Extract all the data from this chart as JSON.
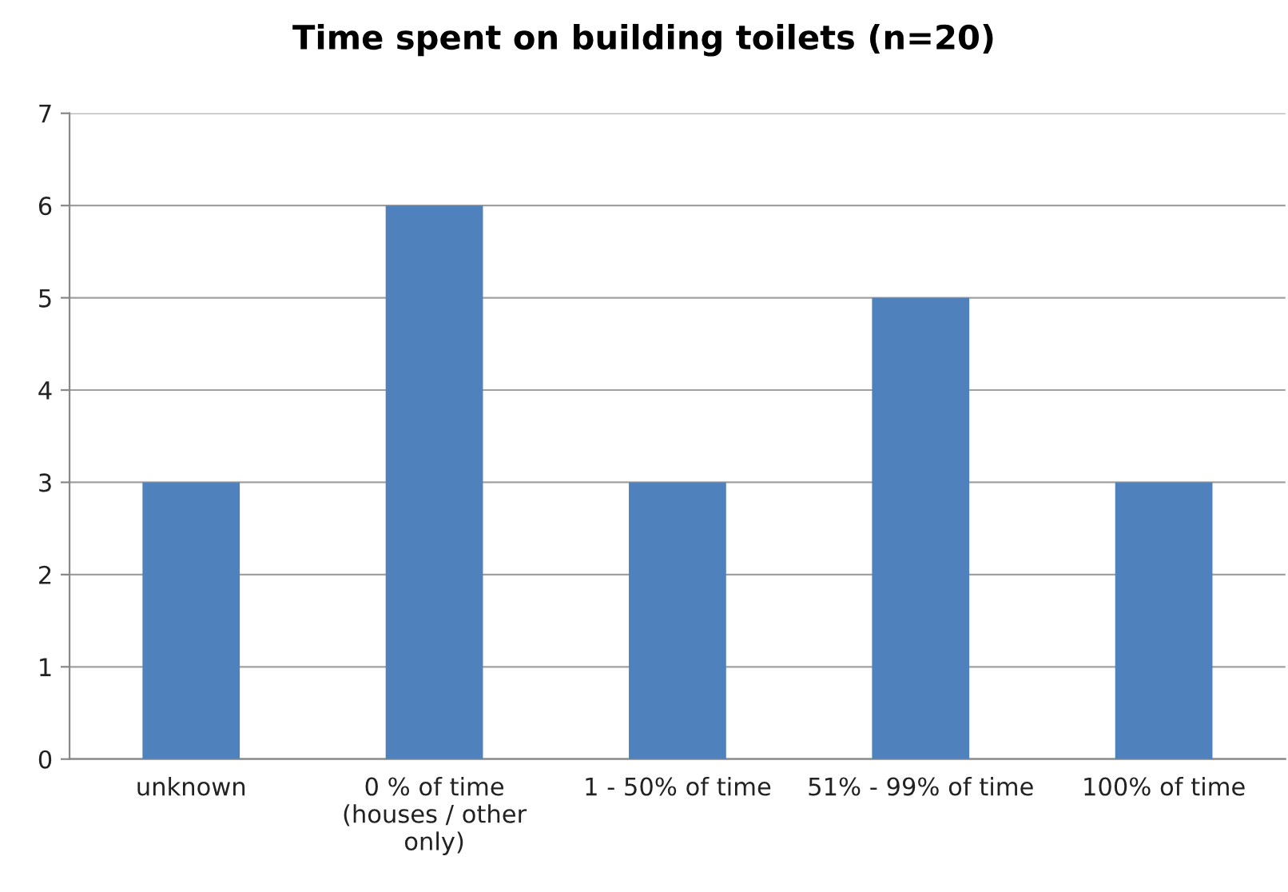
{
  "chart_data": {
    "type": "bar",
    "title": "Time spent on building toilets (n=20)",
    "categories": [
      "unknown",
      "0 % of time\n(houses / other\nonly)",
      "1 - 50% of time",
      "51% - 99% of time",
      "100% of time"
    ],
    "values": [
      3,
      6,
      3,
      5,
      3
    ],
    "color": "#4f81bd",
    "ylim": [
      0,
      7
    ],
    "yticks": [
      0,
      1,
      2,
      3,
      4,
      5,
      6,
      7
    ],
    "grid": "y",
    "legend": false
  }
}
